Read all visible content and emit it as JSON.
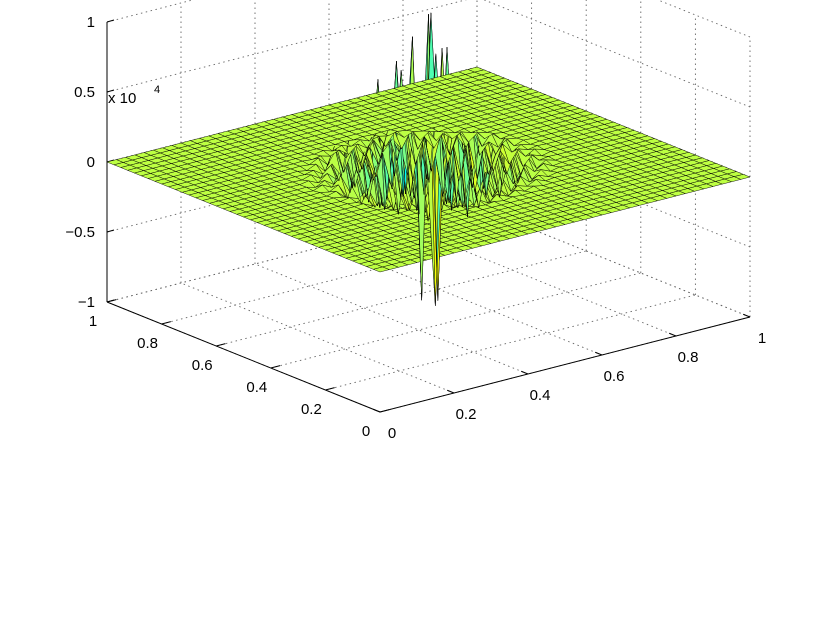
{
  "chart_data": {
    "type": "surface",
    "title": "",
    "xlabel": "",
    "ylabel": "",
    "zlabel": "",
    "z_exponent_label": "x 10",
    "z_exponent_power": "4",
    "xlim": [
      0,
      1
    ],
    "ylim": [
      0,
      1
    ],
    "zlim": [
      -1,
      1
    ],
    "x_ticks": [
      "0",
      "0.2",
      "0.4",
      "0.6",
      "0.8",
      "1"
    ],
    "y_ticks": [
      "0",
      "0.2",
      "0.4",
      "0.6",
      "0.8",
      "1"
    ],
    "z_ticks": [
      "−1",
      "−0.5",
      "0",
      "0.5",
      "1"
    ],
    "grid": true,
    "box": false,
    "colormap": "jet",
    "grid_resolution": 41,
    "surface": {
      "baseline": 0,
      "disturbance_center": [
        0.5,
        0.5
      ],
      "disturbance_radius": 0.3,
      "peak_value": 0.75,
      "trough_value": -0.97
    }
  }
}
